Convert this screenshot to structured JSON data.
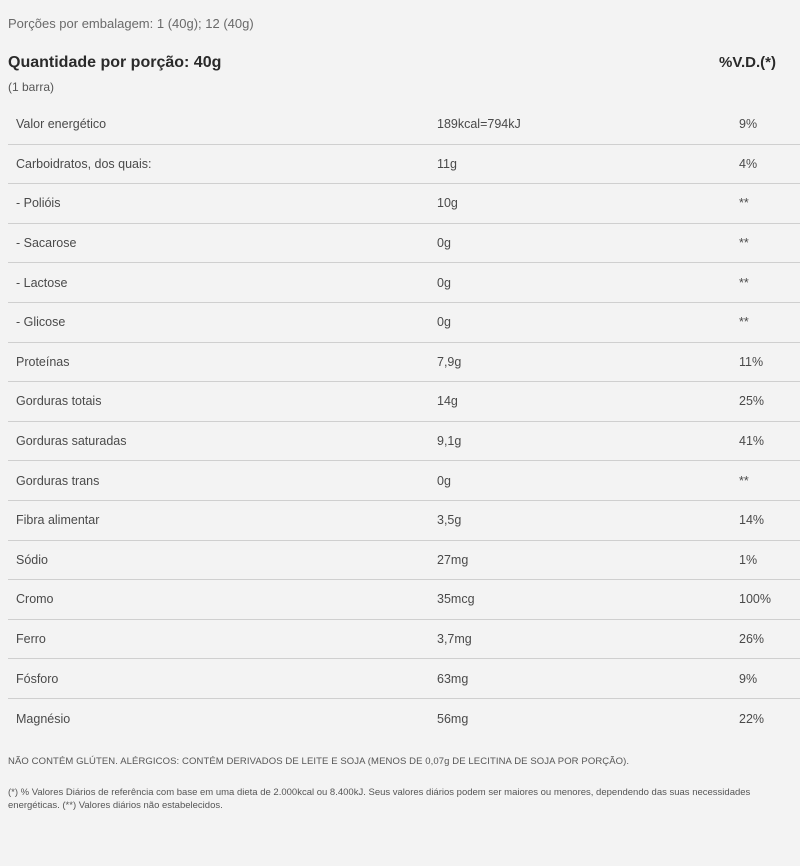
{
  "servings_text": "Porções por embalagem: 1 (40g); 12 (40g)",
  "portion": {
    "title": "Quantidade por porção: 40g",
    "subtitle": "(1 barra)",
    "dv_header": "%V.D.(*)"
  },
  "rows": [
    {
      "name": "Valor energético",
      "amount": "189kcal=794kJ",
      "dv": "9%"
    },
    {
      "name": "Carboidratos, dos quais:",
      "amount": "11g",
      "dv": "4%"
    },
    {
      "name": "- Polióis",
      "amount": "10g",
      "dv": "**"
    },
    {
      "name": "- Sacarose",
      "amount": "0g",
      "dv": "**"
    },
    {
      "name": "- Lactose",
      "amount": "0g",
      "dv": "**"
    },
    {
      "name": "- Glicose",
      "amount": "0g",
      "dv": "**"
    },
    {
      "name": "Proteínas",
      "amount": "7,9g",
      "dv": "11%"
    },
    {
      "name": "Gorduras totais",
      "amount": "14g",
      "dv": "25%"
    },
    {
      "name": "Gorduras saturadas",
      "amount": "9,1g",
      "dv": "41%"
    },
    {
      "name": "Gorduras trans",
      "amount": "0g",
      "dv": "**"
    },
    {
      "name": "Fibra alimentar",
      "amount": "3,5g",
      "dv": "14%"
    },
    {
      "name": "Sódio",
      "amount": "27mg",
      "dv": "1%"
    },
    {
      "name": "Cromo",
      "amount": "35mcg",
      "dv": "100%"
    },
    {
      "name": "Ferro",
      "amount": "3,7mg",
      "dv": "26%"
    },
    {
      "name": "Fósforo",
      "amount": "63mg",
      "dv": "9%"
    },
    {
      "name": "Magnésio",
      "amount": "56mg",
      "dv": "22%"
    }
  ],
  "allergen_text": "NÃO CONTÉM GLÚTEN. ALÉRGICOS: CONTÉM DERIVADOS DE LEITE E SOJA (MENOS DE 0,07g DE LECITINA DE SOJA POR PORÇÃO).",
  "footnote_text": "(*) % Valores Diários de referência com base em uma dieta de 2.000kcal ou 8.400kJ. Seus valores diários podem ser maiores ou menores, dependendo das suas necessidades energéticas. (**) Valores diários não estabelecidos."
}
